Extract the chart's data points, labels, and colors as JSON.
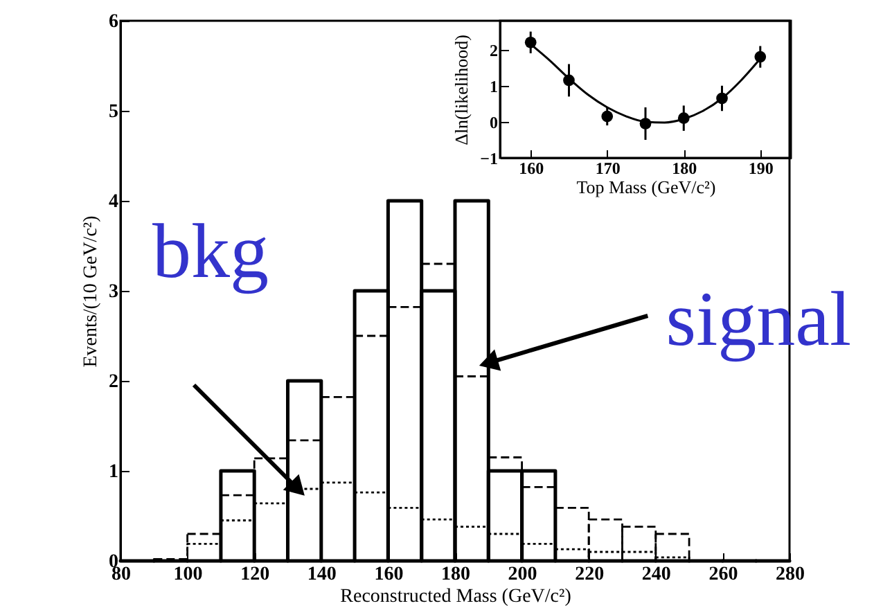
{
  "chart_data": [
    {
      "type": "histogram",
      "xlabel": "Reconstructed Mass (GeV/c²)",
      "ylabel": "Events/(10 GeV/c²)",
      "bins": [
        80,
        90,
        100,
        110,
        120,
        130,
        140,
        150,
        160,
        170,
        180,
        190,
        200,
        210,
        220,
        230,
        240,
        250,
        260,
        270,
        280
      ],
      "series": [
        {
          "color": "#000000",
          "line_style": "solid",
          "values": [
            0,
            0,
            0,
            1,
            0,
            2,
            0,
            3,
            4,
            3,
            4,
            1,
            1,
            0,
            0,
            0,
            0,
            0,
            0,
            0
          ]
        },
        {
          "color": "#000000",
          "line_style": "dashed",
          "values": [
            0,
            0.02,
            0.3,
            0.73,
            1.14,
            1.34,
            1.82,
            2.5,
            2.82,
            3.3,
            2.05,
            1.15,
            0.82,
            0.59,
            0.46,
            0.38,
            0.3,
            0,
            0,
            0
          ]
        },
        {
          "color": "#000000",
          "line_style": "dotted",
          "values": [
            0,
            0,
            0.19,
            0.45,
            0.64,
            0.8,
            0.87,
            0.76,
            0.59,
            0.46,
            0.38,
            0.3,
            0.19,
            0.13,
            0.1,
            0.1,
            0.04,
            0,
            0,
            0
          ]
        }
      ],
      "xlim": [
        80,
        280
      ],
      "xticks": [
        80,
        100,
        120,
        140,
        160,
        180,
        200,
        220,
        240,
        260,
        280
      ],
      "ylim": [
        0,
        6
      ],
      "yticks": [
        0,
        1,
        2,
        3,
        4,
        5,
        6
      ],
      "annotations": [
        {
          "text": "bkg",
          "x": 133,
          "y": 0.8
        },
        {
          "text": "signal",
          "x": 190,
          "y": 2.2
        }
      ]
    },
    {
      "type": "scatter",
      "xlabel": "Top Mass (GeV/c²)",
      "ylabel": "Δln(likelihood)",
      "series": [
        {
          "color": "#000000",
          "marker": "circle",
          "x": [
            160,
            165,
            170,
            175,
            180,
            185,
            190
          ],
          "values": [
            2.2,
            1.15,
            0.15,
            -0.05,
            0.1,
            0.65,
            1.8
          ],
          "errors": [
            0.3,
            0.45,
            0.25,
            0.45,
            0.35,
            0.35,
            0.3
          ]
        },
        {
          "type": "line",
          "color": "#000000",
          "x": [
            160,
            162.5,
            165,
            167.5,
            170,
            172.5,
            175,
            177.5,
            180,
            182.5,
            185,
            187.5,
            190
          ],
          "values": [
            2.15,
            1.7,
            1.2,
            0.75,
            0.4,
            0.15,
            0,
            -0.02,
            0.08,
            0.3,
            0.65,
            1.15,
            1.75
          ]
        }
      ],
      "xlim": [
        156,
        194
      ],
      "xticks": [
        160,
        170,
        180,
        190
      ],
      "ylim": [
        -1,
        2.8
      ],
      "yticks": [
        -1,
        0,
        1,
        2
      ]
    }
  ]
}
